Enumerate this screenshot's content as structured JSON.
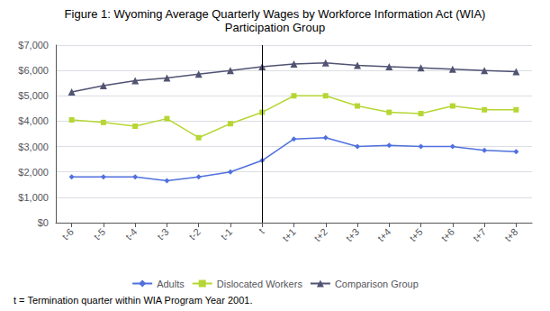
{
  "chart_data": {
    "type": "line",
    "title": "Figure 1: Wyoming Average Quarterly Wages by Workforce Information Act (WIA)",
    "subtitle": "Participation Group",
    "annotations": [
      "t = Termination quarter within WIA Program Year 2001."
    ],
    "categories": [
      "t-6",
      "t-5",
      "t-4",
      "t-3",
      "t-2",
      "t-1",
      "t",
      "t+1",
      "t+2",
      "t+3",
      "t+4",
      "t+5",
      "t+6",
      "t+7",
      "t+8"
    ],
    "series": [
      {
        "name": "Adults",
        "marker": "diamond",
        "values": [
          1800,
          1800,
          1800,
          1650,
          1800,
          2000,
          2450,
          3300,
          3350,
          3000,
          3050,
          3000,
          3000,
          2850,
          2800
        ]
      },
      {
        "name": "Dislocated Workers",
        "marker": "square",
        "values": [
          4050,
          3950,
          3800,
          4100,
          3350,
          3900,
          4350,
          5000,
          5000,
          4600,
          4350,
          4300,
          4600,
          4450,
          4450
        ]
      },
      {
        "name": "Comparison Group",
        "marker": "triangle",
        "values": [
          5150,
          5400,
          5600,
          5700,
          5850,
          6000,
          6150,
          6250,
          6300,
          6200,
          6150,
          6100,
          6050,
          6000,
          5950
        ]
      }
    ],
    "vline": "t",
    "ylim": [
      0,
      7000
    ],
    "yticks": [
      {
        "value": 0,
        "label": "$0"
      },
      {
        "value": 1000,
        "label": "$1,000"
      },
      {
        "value": 2000,
        "label": "$2,000"
      },
      {
        "value": 3000,
        "label": "$3,000"
      },
      {
        "value": 4000,
        "label": "$4,000"
      },
      {
        "value": 5000,
        "label": "$5,000"
      },
      {
        "value": 6000,
        "label": "$6,000"
      },
      {
        "value": 7000,
        "label": "$7,000"
      }
    ],
    "grid": true,
    "legend": "bottom"
  }
}
